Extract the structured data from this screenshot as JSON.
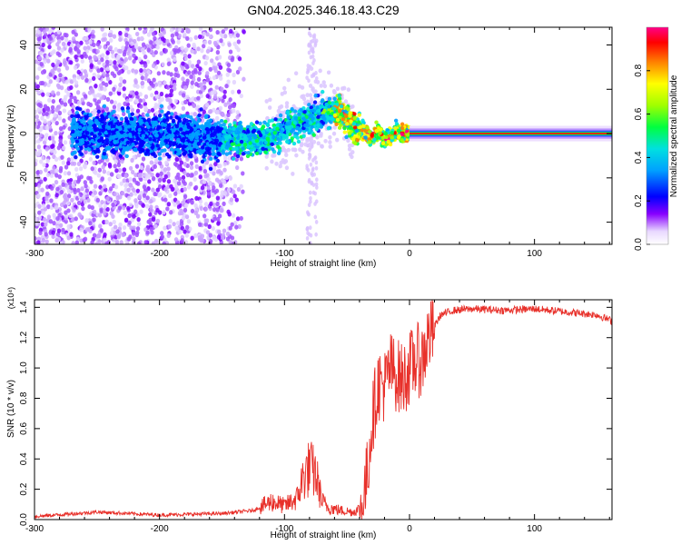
{
  "figure_title": "GN04.2025.346.18.43.C29",
  "chart_data": [
    {
      "type": "heatmap",
      "title": "GN04.2025.346.18.43.C29",
      "xlabel": "Height of straight line (km)",
      "ylabel": "Frequency (Hz)",
      "xlim": [
        -300,
        162
      ],
      "ylim": [
        -50,
        48
      ],
      "xticks": [
        -300,
        -200,
        -100,
        0,
        100
      ],
      "yticks": [
        -40,
        -20,
        0,
        20,
        40
      ],
      "colorbar": {
        "label": "Normalized spectral amplitude",
        "range": [
          0,
          1
        ],
        "ticks": [
          0.0,
          0.2,
          0.4,
          0.6,
          0.8
        ],
        "colors": [
          "#ffffff",
          "#e8d8ff",
          "#8800ff",
          "#0000ff",
          "#00e0ff",
          "#00ff40",
          "#c8ff00",
          "#ffff00",
          "#ff8000",
          "#ff0000",
          "#ff0088"
        ]
      },
      "ridge": {
        "description_points_x": [
          -265,
          -240,
          -210,
          -180,
          -150,
          -130,
          -115,
          -100,
          -90,
          -80,
          -70,
          -60,
          -55,
          -50,
          -45,
          -40,
          -35,
          -30,
          -25,
          -20,
          -15,
          -10,
          -5,
          0,
          50,
          100,
          162
        ],
        "description_points_freq": [
          0,
          0,
          0,
          -1,
          -2,
          -3,
          -2,
          2,
          5,
          7,
          9,
          11,
          10,
          6,
          3,
          2,
          0,
          -1,
          0,
          -2,
          -1,
          1,
          0,
          0,
          0,
          0,
          0
        ]
      }
    },
    {
      "type": "line",
      "xlabel": "Height of straight line (km)",
      "ylabel": "SNR (10 * v/v)",
      "scale_label": "(x10⁴)",
      "xlim": [
        -300,
        162
      ],
      "ylim": [
        0,
        1.45
      ],
      "xticks": [
        -300,
        -200,
        -100,
        0,
        100
      ],
      "yticks": [
        0.0,
        0.2,
        0.4,
        0.6,
        0.8,
        1.0,
        1.2,
        1.4
      ],
      "series": [
        {
          "name": "SNR",
          "color": "#e8302a",
          "x": [
            -300,
            -250,
            -200,
            -150,
            -125,
            -110,
            -100,
            -90,
            -85,
            -80,
            -75,
            -70,
            -65,
            -55,
            -45,
            -38,
            -34,
            -30,
            -25,
            -20,
            -15,
            -10,
            -5,
            0,
            5,
            10,
            15,
            25,
            35,
            50,
            75,
            100,
            125,
            150,
            162
          ],
          "values": [
            0.02,
            0.05,
            0.03,
            0.04,
            0.06,
            0.12,
            0.09,
            0.14,
            0.28,
            0.34,
            0.3,
            0.12,
            0.08,
            0.06,
            0.05,
            0.08,
            0.28,
            0.65,
            0.9,
            0.88,
            1.0,
            0.95,
            0.92,
            1.0,
            1.05,
            1.05,
            1.2,
            1.35,
            1.38,
            1.39,
            1.38,
            1.39,
            1.37,
            1.35,
            1.31
          ]
        }
      ]
    }
  ]
}
